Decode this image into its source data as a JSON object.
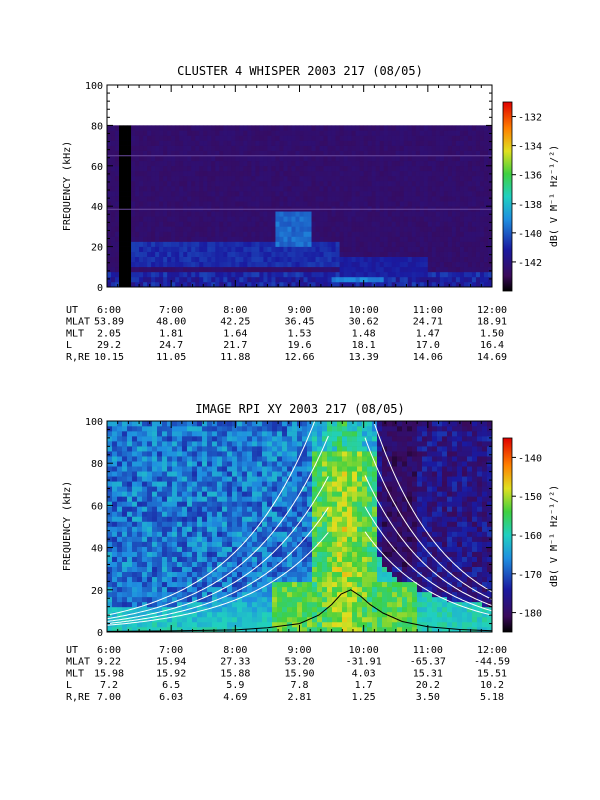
{
  "colors": {
    "background": "#ffffff",
    "ink": "#000000"
  },
  "chart_data": [
    {
      "type": "heatmap",
      "title": "CLUSTER 4 WHISPER 2003 217 (08/05)",
      "ylabel": "FREQUENCY (kHz)",
      "ylim": [
        0,
        100
      ],
      "y_ticks": [
        "0",
        "20",
        "40",
        "60",
        "80",
        "100"
      ],
      "x_ticks": [
        "6:00",
        "7:00",
        "8:00",
        "9:00",
        "10:00",
        "11:00",
        "12:00"
      ],
      "x_range_hours": [
        6,
        12
      ],
      "data_top_khz": 80,
      "colorbar": {
        "label": "dB( V M⁻¹ Hz⁻¹/²)",
        "ticks": [
          "-132",
          "-134",
          "-136",
          "-138",
          "-140",
          "-142"
        ],
        "range": [
          -144,
          -131
        ]
      },
      "ephemeris": {
        "labels": [
          "UT",
          "MLAT",
          "MLT",
          "L",
          "R,RE"
        ],
        "columns": [
          [
            "6:00",
            "53.89",
            "2.05",
            "29.2",
            "10.15"
          ],
          [
            "7:00",
            "48.00",
            "1.81",
            "24.7",
            "11.05"
          ],
          [
            "8:00",
            "42.25",
            "1.64",
            "21.7",
            "11.88"
          ],
          [
            "9:00",
            "36.45",
            "1.53",
            "19.6",
            "12.66"
          ],
          [
            "10:00",
            "30.62",
            "1.48",
            "18.1",
            "13.39"
          ],
          [
            "11:00",
            "24.71",
            "1.47",
            "17.0",
            "14.06"
          ],
          [
            "12:00",
            "18.91",
            "1.50",
            "16.4",
            "14.69"
          ]
        ]
      }
    },
    {
      "type": "heatmap",
      "title": "IMAGE RPI XY 2003 217 (08/05)",
      "ylabel": "FREQUENCY (kHz)",
      "ylim": [
        0,
        100
      ],
      "y_ticks": [
        "0",
        "20",
        "40",
        "60",
        "80",
        "100"
      ],
      "x_ticks": [
        "6:00",
        "7:00",
        "8:00",
        "9:00",
        "10:00",
        "11:00",
        "12:00"
      ],
      "x_range_hours": [
        6,
        12
      ],
      "colorbar": {
        "label": "dB( V M⁻¹ Hz⁻¹/²)",
        "ticks": [
          "-140",
          "-150",
          "-160",
          "-170",
          "-180"
        ],
        "range": [
          -185,
          -135
        ]
      },
      "ephemeris": {
        "labels": [
          "UT",
          "MLAT",
          "MLT",
          "L",
          "R,RE"
        ],
        "columns": [
          [
            "6:00",
            "9.22",
            "15.98",
            "7.2",
            "7.00"
          ],
          [
            "7:00",
            "15.94",
            "15.92",
            "6.5",
            "6.03"
          ],
          [
            "8:00",
            "27.33",
            "15.88",
            "5.9",
            "4.69"
          ],
          [
            "9:00",
            "53.20",
            "15.90",
            "7.8",
            "2.81"
          ],
          [
            "10:00",
            "-31.91",
            "4.03",
            "1.7",
            "1.25"
          ],
          [
            "11:00",
            "-65.37",
            "15.31",
            "20.2",
            "3.50"
          ],
          [
            "12:00",
            "-44.59",
            "15.51",
            "10.2",
            "5.18"
          ]
        ]
      },
      "overlay_black_curve": {
        "x_hours": [
          6.0,
          7.0,
          8.0,
          8.5,
          9.0,
          9.3,
          9.5,
          9.65,
          9.8,
          9.95,
          10.1,
          10.3,
          10.6,
          11.0,
          11.5,
          12.0
        ],
        "y_khz": [
          0.3,
          0.5,
          1.0,
          2.0,
          4.0,
          8.0,
          13.0,
          18.0,
          20.0,
          17.0,
          13.0,
          9.0,
          5.0,
          2.5,
          1.2,
          0.6
        ]
      }
    }
  ]
}
